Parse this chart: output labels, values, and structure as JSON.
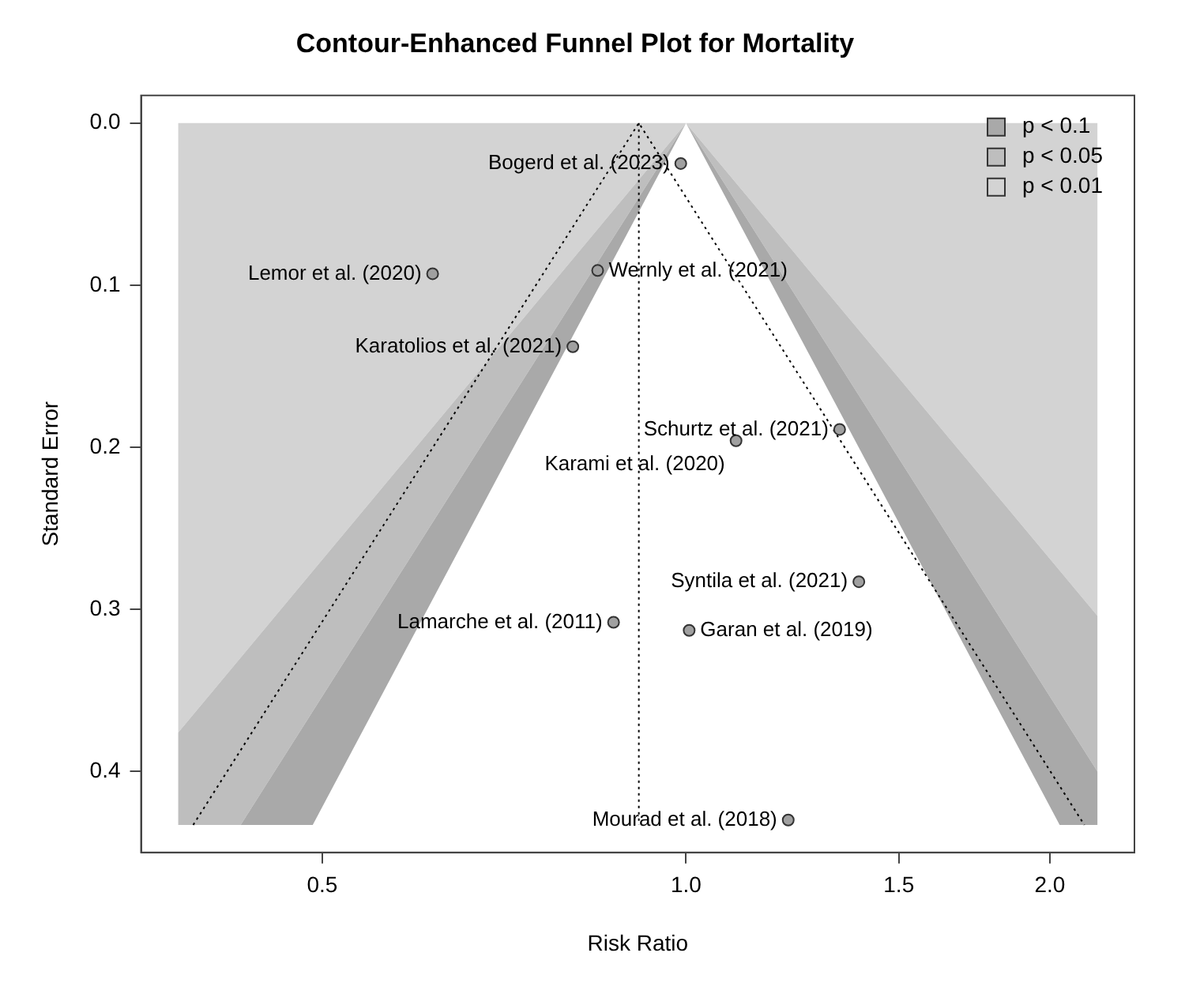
{
  "chart_data": {
    "type": "scatter",
    "title": "Contour-Enhanced Funnel Plot for Mortality",
    "xlabel": "Risk Ratio",
    "ylabel": "Standard Error",
    "log": "x",
    "xlim": [
      0.354,
      2.35
    ],
    "ylim": [
      0.45,
      -0.017
    ],
    "xticks": [
      0.5,
      {
        "value": 1,
        "label": "1.0"
      },
      1.5,
      {
        "value": 2,
        "label": "2.0"
      }
    ],
    "yticks": [
      {
        "value": 0,
        "label": "0.0"
      },
      0.1,
      0.2,
      0.3,
      0.4
    ],
    "legend": "top right",
    "series": [
      {
        "type": "area",
        "name": "p < 0.1",
        "color": "#a9a9a9",
        "x": [
          0.491,
          0.428,
          1,
          2.19,
          2.19,
          2.038,
          1,
          0.491
        ],
        "values": [
          0.433,
          0.433,
          0,
          0.4,
          0.433,
          0.433,
          0,
          0.433
        ]
      },
      {
        "type": "area",
        "name": "p < 0.05",
        "color": "#bebebe",
        "x": [
          0.428,
          0.38,
          0.38,
          1,
          2.19,
          2.19,
          1,
          0.428
        ],
        "values": [
          0.433,
          0.433,
          0.376,
          0,
          0.304,
          0.4,
          0,
          0.433
        ]
      },
      {
        "type": "area",
        "name": "p < 0.01",
        "color": "#d3d3d3",
        "x": [
          0.38,
          0.38,
          2.19,
          2.19,
          1,
          0.38
        ],
        "values": [
          0.376,
          0,
          0,
          0.304,
          0,
          0.376
        ]
      },
      {
        "type": "line",
        "color": "#000000",
        "line_style": "dotted",
        "marker": "none",
        "x": [
          0.391,
          0.914,
          2.136
        ],
        "values": [
          0.433,
          0,
          0.433
        ]
      },
      {
        "type": "line",
        "color": "#000000",
        "line_style": "dotted",
        "marker": "none",
        "x": [
          0.914,
          0.914
        ],
        "values": [
          0,
          0.433
        ]
      },
      {
        "type": "scatter",
        "color": "#a0a0a0",
        "marker": "circle",
        "x": [
          0.99,
          0.617,
          0.845,
          0.806,
          1.34,
          1.1,
          1.39,
          0.871,
          1.006,
          1.215
        ],
        "values": [
          0.025,
          0.093,
          0.091,
          0.138,
          0.189,
          0.196,
          0.283,
          0.308,
          0.313,
          0.43
        ]
      }
    ],
    "annotations": [
      {
        "text": "Bogerd et al. (2023)",
        "x": 0.99,
        "y": 0.025
      },
      {
        "text": "Lemor et al. (2020)",
        "x": 0.617,
        "y": 0.093
      },
      {
        "text": "Wernly et al. (2021)",
        "x": 0.845,
        "y": 0.091
      },
      {
        "text": "Karatolios et al. (2021)",
        "x": 0.806,
        "y": 0.138
      },
      {
        "text": "Schurtz et al. (2021)",
        "x": 1.34,
        "y": 0.189
      },
      {
        "text": "Karami et al. (2020)",
        "x": 1.1,
        "y": 0.196
      },
      {
        "text": "Syntila et al. (2021)",
        "x": 1.39,
        "y": 0.283
      },
      {
        "text": "Lamarche et al. (2011)",
        "x": 0.871,
        "y": 0.308
      },
      {
        "text": "Garan et al. (2019)",
        "x": 1.006,
        "y": 0.313
      },
      {
        "text": "Mourad et al. (2018)",
        "x": 1.215,
        "y": 0.43
      }
    ]
  }
}
